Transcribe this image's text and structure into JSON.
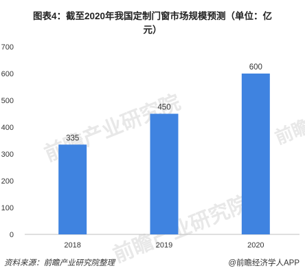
{
  "title": "图表4：截至2020年我国定制门窗市场规模预测（单位：亿元）",
  "footer": {
    "source": "资料来源：前瞻产业研究院整理",
    "credit": "@前瞻经济学人APP"
  },
  "watermark": {
    "text": "前瞻产业研究院"
  },
  "colors": {
    "bar": "#3F83E0",
    "axis": "#BFBFBF",
    "text": "#333333",
    "watermark": "#E8E8E8"
  },
  "chart_data": {
    "type": "bar",
    "title": "图表4：截至2020年我国定制门窗市场规模预测（单位：亿元）",
    "categories": [
      "2018",
      "2019",
      "2020"
    ],
    "values": [
      335,
      450,
      600
    ],
    "xlabel": "",
    "ylabel": "",
    "ylim": [
      0,
      700
    ],
    "yticks": [
      "0",
      "100",
      "200",
      "300",
      "400",
      "500",
      "600",
      "700"
    ],
    "data_labels": [
      "335",
      "450",
      "600"
    ],
    "grid": false,
    "legend": "none"
  }
}
